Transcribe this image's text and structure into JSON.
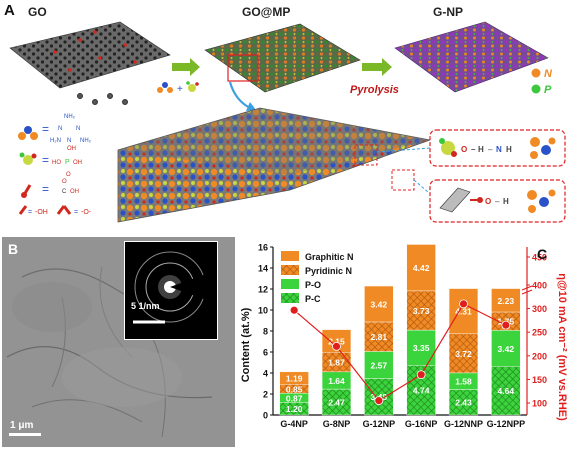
{
  "panel_a": {
    "label": "A",
    "stage_labels": [
      "GO",
      "GO@MP",
      "G-NP"
    ],
    "process_label": "Pyrolysis",
    "legend": [
      {
        "letter": "N",
        "color": "#f08a24"
      },
      {
        "letter": "P",
        "color": "#3cc83c"
      }
    ],
    "molecule_labels": {
      "melamine": [
        "NH2",
        "N",
        "N",
        "H2N",
        "N",
        "NH2"
      ],
      "phosphoric": [
        "OH",
        "HO",
        "P",
        "OH",
        "O"
      ],
      "carboxyl": [
        "O",
        "C",
        "OH"
      ],
      "legend_oh": "=-OH",
      "legend_o": "=-O-"
    },
    "inset_labels": [
      "O",
      "H",
      "N",
      "H",
      "O",
      "H"
    ],
    "colors": {
      "graphene": "#444444",
      "oxygen": "#d0281e",
      "nitrogen": "#f08a24",
      "phosphorus": "#3cc83c",
      "carbon_purple": "#9a2fc8",
      "blue_node": "#2a52c8"
    }
  },
  "panel_b": {
    "label": "B",
    "saed_scale": "5 1/nm",
    "image_scale": "1 μm"
  },
  "panel_c": {
    "label": "C",
    "y_left_label": "Content (at.%)",
    "y_right_label": "η@10 mA cm⁻² (mV vs.RHE)",
    "legend": [
      "Graphitic N",
      "Pyridinic N",
      "P-O",
      "P-C"
    ]
  },
  "chart_data": {
    "type": "bar",
    "categories": [
      "G-4NP",
      "G-8NP",
      "G-12NP",
      "G-16NP",
      "G-12NNP",
      "G-12NPP"
    ],
    "series": [
      {
        "name": "P-C",
        "values": [
          1.2,
          2.47,
          3.48,
          4.74,
          2.43,
          4.64
        ],
        "color": "#3cd43c",
        "hatch": true
      },
      {
        "name": "P-O",
        "values": [
          0.87,
          1.64,
          2.57,
          3.35,
          1.58,
          3.42
        ],
        "color": "#3cd43c",
        "hatch": false
      },
      {
        "name": "Pyridinic N",
        "values": [
          0.85,
          1.87,
          2.81,
          3.73,
          3.72,
          1.75
        ],
        "color": "#f08a24",
        "hatch": true
      },
      {
        "name": "Graphitic N",
        "values": [
          1.19,
          2.15,
          3.42,
          4.42,
          4.31,
          2.23
        ],
        "color": "#f08a24",
        "hatch": false
      }
    ],
    "overpotential": {
      "values": [
        355,
        220,
        105,
        160,
        310,
        265
      ],
      "color": "#e01e1e"
    },
    "y_left": {
      "min": 0,
      "max": 16,
      "ticks": [
        0,
        2,
        4,
        6,
        8,
        10,
        12,
        14,
        16
      ]
    },
    "y_right": {
      "ticks": [
        100,
        150,
        200,
        250,
        300,
        350,
        400,
        450
      ]
    },
    "grid": false
  }
}
